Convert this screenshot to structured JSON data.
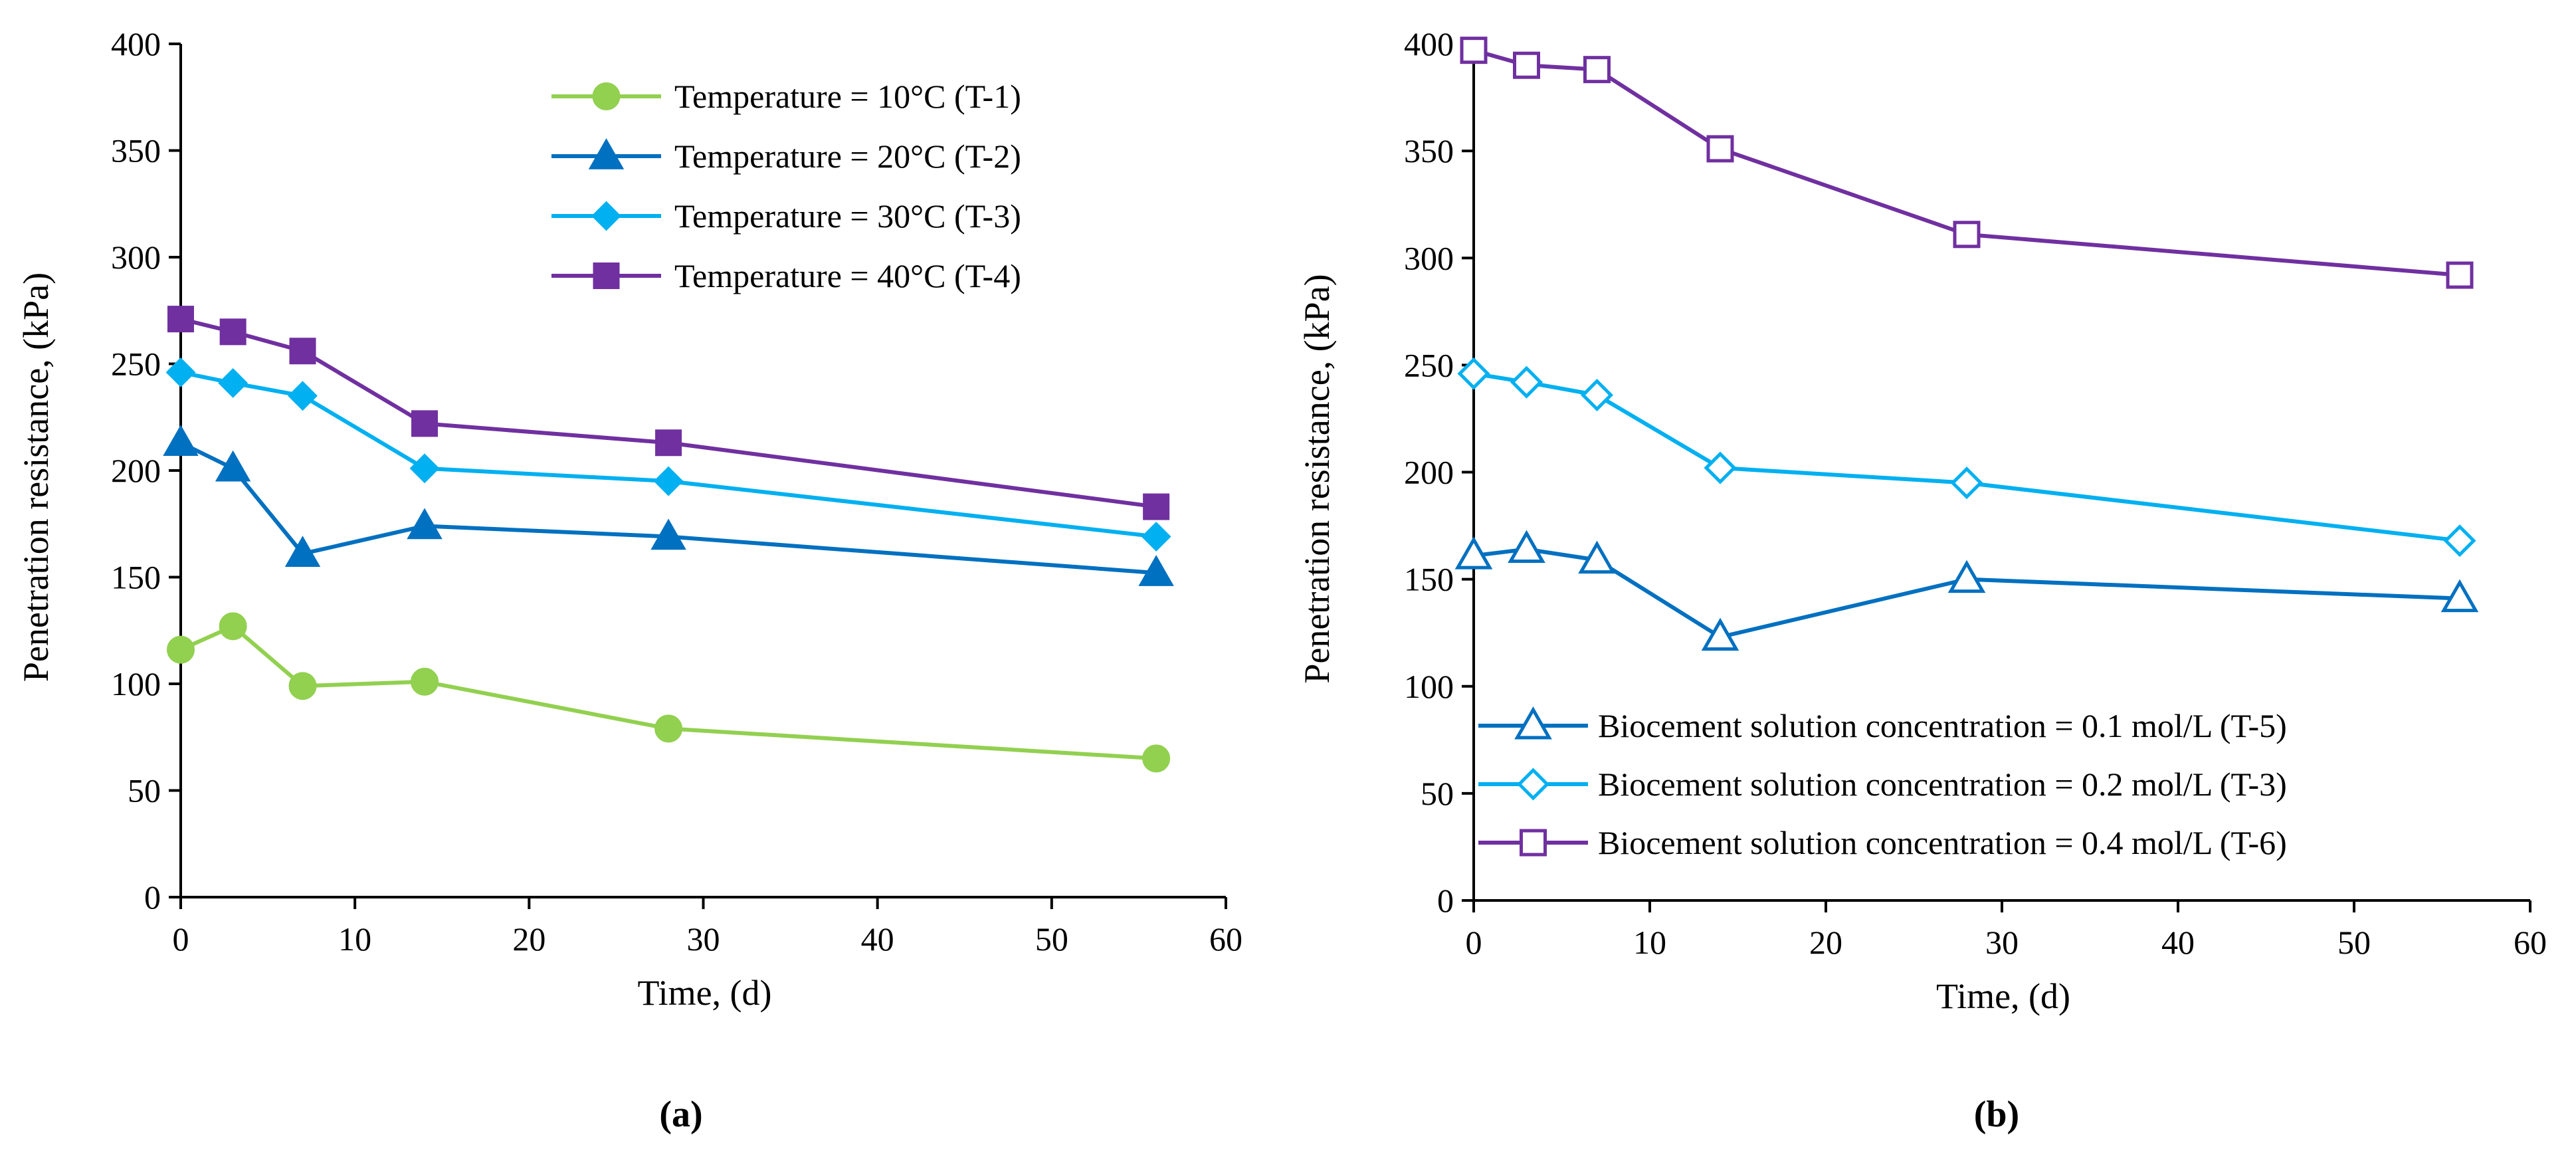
{
  "chart_data": [
    {
      "panel": "(a)",
      "type": "line",
      "title": "",
      "xlabel": "Time, (d)",
      "ylabel": "Penetration resistance, (kPa)",
      "xlim": [
        0,
        60
      ],
      "ylim": [
        0,
        400
      ],
      "xticks": [
        "0",
        "10",
        "20",
        "30",
        "40",
        "50",
        "60"
      ],
      "yticks": [
        "0",
        "50",
        "100",
        "150",
        "200",
        "250",
        "300",
        "350",
        "400"
      ],
      "grid": false,
      "legend_position": "top-right",
      "x": [
        0,
        3,
        7,
        14,
        28,
        56
      ],
      "series": [
        {
          "name": "Temperature = 10°C (T-1)",
          "color": "#92d050",
          "marker": "circle",
          "filled": true,
          "values": [
            116,
            127,
            99,
            101,
            79,
            65
          ]
        },
        {
          "name": "Temperature = 20°C (T-2)",
          "color": "#0070c0",
          "marker": "triangle",
          "filled": true,
          "values": [
            213,
            201,
            161,
            174,
            169,
            152
          ]
        },
        {
          "name": "Temperature = 30°C (T-3)",
          "color": "#00b0f0",
          "marker": "diamond",
          "filled": true,
          "values": [
            246,
            241,
            235,
            201,
            195,
            169
          ]
        },
        {
          "name": "Temperature = 40°C (T-4)",
          "color": "#7030a0",
          "marker": "square",
          "filled": true,
          "values": [
            271,
            265,
            256,
            222,
            213,
            183
          ]
        }
      ]
    },
    {
      "panel": "(b)",
      "type": "line",
      "title": "",
      "xlabel": "Time, (d)",
      "ylabel": "Penetration resistance, (kPa)",
      "xlim": [
        0,
        60
      ],
      "ylim": [
        0,
        400
      ],
      "xticks": [
        "0",
        "10",
        "20",
        "30",
        "40",
        "50",
        "60"
      ],
      "yticks": [
        "0",
        "50",
        "100",
        "150",
        "200",
        "250",
        "300",
        "350",
        "400"
      ],
      "grid": false,
      "legend_position": "bottom-right",
      "x": [
        0,
        3,
        7,
        14,
        28,
        56
      ],
      "series": [
        {
          "name": "Biocement solution concentration = 0.1 mol/L (T-5)",
          "color": "#0070c0",
          "marker": "triangle",
          "filled": false,
          "values": [
            161,
            164,
            159,
            123,
            150,
            141
          ]
        },
        {
          "name": "Biocement solution concentration = 0.2 mol/L (T-3)",
          "color": "#00b0f0",
          "marker": "diamond",
          "filled": false,
          "values": [
            246,
            242,
            236,
            202,
            195,
            168
          ]
        },
        {
          "name": "Biocement solution concentration = 0.4 mol/L (T-6)",
          "color": "#7030a0",
          "marker": "square",
          "filled": false,
          "values": [
            397,
            390,
            388,
            351,
            311,
            292
          ]
        }
      ]
    }
  ]
}
